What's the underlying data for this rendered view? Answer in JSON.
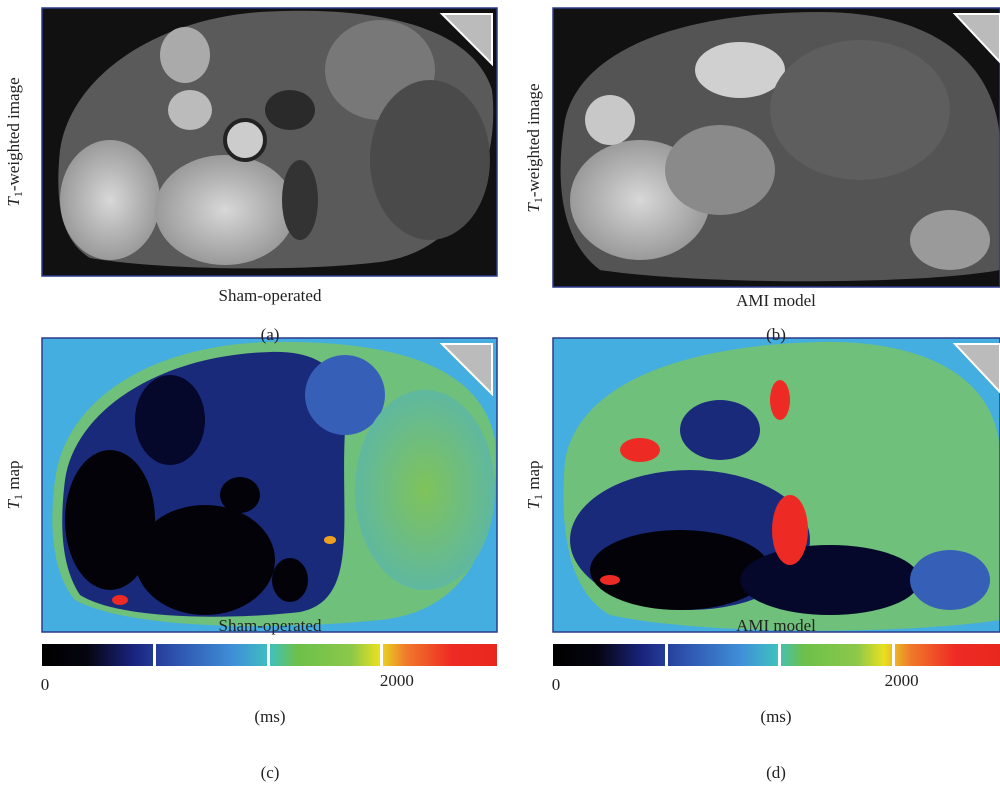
{
  "panels": [
    {
      "row_label": {
        "symbol": "T",
        "subscript": "1",
        "text": "-weighted image"
      },
      "caption": "Sham-operated",
      "letter": "(a)"
    },
    {
      "row_label": {
        "symbol": "T",
        "subscript": "1",
        "text": "-weighted image"
      },
      "caption": "AMI model",
      "letter": "(b)"
    },
    {
      "row_label": {
        "symbol": "T",
        "subscript": "1",
        "text": " map"
      },
      "caption": "Sham-operated",
      "letter": "(c)",
      "colorbar": {
        "min_label": "0",
        "max_label": "2000",
        "unit": "(ms)"
      }
    },
    {
      "row_label": {
        "symbol": "T",
        "subscript": "1",
        "text": " map"
      },
      "caption": "AMI model",
      "letter": "(d)",
      "colorbar": {
        "min_label": "0",
        "max_label": "2000",
        "unit": "(ms)"
      }
    }
  ]
}
